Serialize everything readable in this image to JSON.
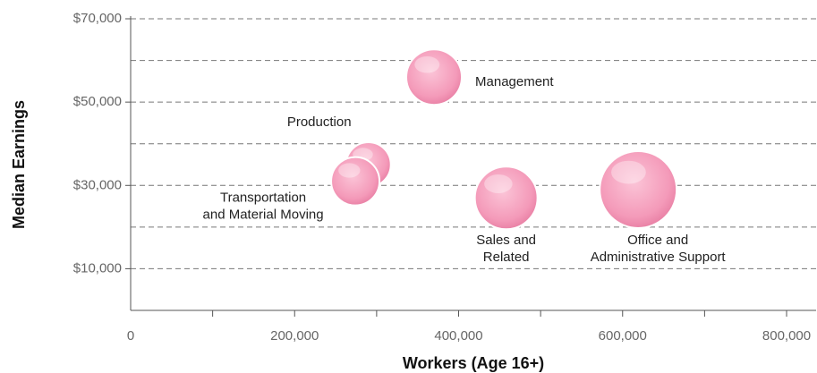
{
  "chart_data": {
    "type": "bubble",
    "xlabel": "Workers (Age 16+)",
    "ylabel": "Median Earnings",
    "labels": [
      [
        "Management"
      ],
      [
        "Production"
      ],
      [
        "Transportation",
        "and Material Moving"
      ],
      [
        "Sales and",
        "Related"
      ],
      [
        "Office and",
        "Administrative Support"
      ]
    ],
    "x": [
      370000,
      290000,
      274000,
      458000,
      619000
    ],
    "values": [
      56000,
      35000,
      31000,
      27000,
      29000
    ],
    "sizes": [
      961,
      625,
      729,
      1225,
      1849
    ],
    "color": "#f49ab9",
    "xlim": [
      0,
      836000
    ],
    "xticks": [
      {
        "value": 0,
        "label": "0"
      },
      {
        "value": 200000,
        "label": "200,000"
      },
      {
        "value": 400000,
        "label": "400,000"
      },
      {
        "value": 600000,
        "label": "600,000"
      },
      {
        "value": 800000,
        "label": "800,000"
      }
    ],
    "xminor_ticks": [
      100000,
      300000,
      500000,
      700000
    ],
    "ylim": [
      0,
      70000
    ],
    "yticks": [
      {
        "value": 10000,
        "label": "$10,000"
      },
      {
        "value": 30000,
        "label": "$30,000"
      },
      {
        "value": 50000,
        "label": "$50,000"
      },
      {
        "value": 70000,
        "label": "$70,000"
      }
    ],
    "yminor_grid": [
      20000,
      40000,
      60000
    ],
    "grid": true
  }
}
